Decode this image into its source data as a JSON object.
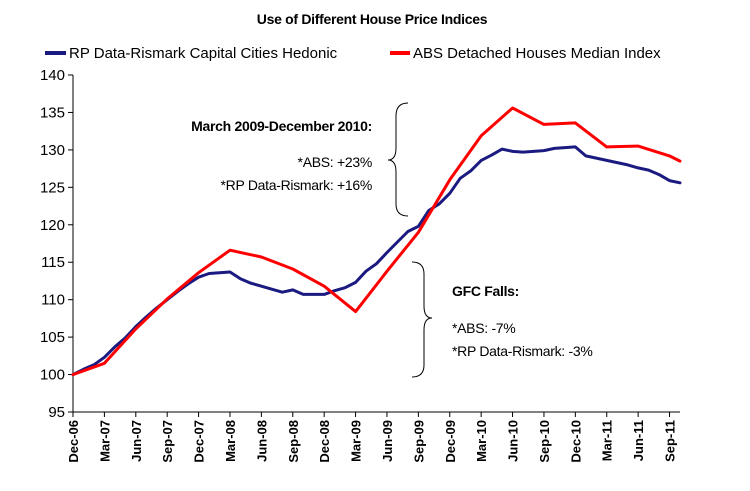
{
  "chart_data": {
    "type": "line",
    "title": "Use of Different House Price Indices",
    "xlabel": "",
    "ylabel": "",
    "ylim": [
      95,
      140
    ],
    "yticks": [
      95,
      100,
      105,
      110,
      115,
      120,
      125,
      130,
      135,
      140
    ],
    "x_tick_labels": [
      "Dec-06",
      "Mar-07",
      "Jun-07",
      "Sep-07",
      "Dec-07",
      "Mar-08",
      "Jun-08",
      "Sep-08",
      "Dec-08",
      "Mar-09",
      "Jun-09",
      "Sep-09",
      "Dec-09",
      "Mar-10",
      "Jun-10",
      "Sep-10",
      "Dec-10",
      "Mar-11",
      "Jun-11",
      "Sep-11"
    ],
    "grid": false,
    "legend": "top",
    "series": [
      {
        "name": "RP Data-Rismark Capital Cities Hedonic",
        "color": "#1a1a80",
        "x": [
          "Dec-06",
          "Jan-07",
          "Feb-07",
          "Mar-07",
          "Apr-07",
          "May-07",
          "Jun-07",
          "Jul-07",
          "Aug-07",
          "Sep-07",
          "Oct-07",
          "Nov-07",
          "Dec-07",
          "Jan-08",
          "Feb-08",
          "Mar-08",
          "Apr-08",
          "May-08",
          "Jun-08",
          "Jul-08",
          "Aug-08",
          "Sep-08",
          "Oct-08",
          "Nov-08",
          "Dec-08",
          "Jan-09",
          "Feb-09",
          "Mar-09",
          "Apr-09",
          "May-09",
          "Jun-09",
          "Jul-09",
          "Aug-09",
          "Sep-09",
          "Oct-09",
          "Nov-09",
          "Dec-09",
          "Jan-10",
          "Feb-10",
          "Mar-10",
          "Apr-10",
          "May-10",
          "Jun-10",
          "Jul-10",
          "Aug-10",
          "Sep-10",
          "Oct-10",
          "Nov-10",
          "Dec-10",
          "Jan-11",
          "Feb-11",
          "Mar-11",
          "Apr-11",
          "May-11",
          "Jun-11",
          "Jul-11",
          "Aug-11",
          "Sep-11",
          "Oct-11"
        ],
        "values": [
          100.0,
          100.7,
          101.3,
          102.3,
          103.7,
          104.9,
          106.4,
          107.7,
          108.9,
          110.0,
          111.1,
          112.1,
          113.0,
          113.5,
          113.6,
          113.7,
          112.8,
          112.2,
          111.8,
          111.4,
          111.0,
          111.3,
          110.7,
          110.7,
          110.7,
          111.2,
          111.6,
          112.3,
          113.8,
          114.8,
          116.3,
          117.7,
          119.1,
          119.8,
          121.9,
          122.8,
          124.2,
          126.2,
          127.2,
          128.6,
          129.3,
          130.1,
          129.8,
          129.7,
          129.8,
          129.9,
          130.2,
          130.3,
          130.4,
          129.2,
          128.9,
          128.6,
          128.3,
          128.0,
          127.6,
          127.3,
          126.7,
          125.9,
          125.6
        ]
      },
      {
        "name": "ABS Detached Houses Median Index",
        "color": "#ff0000",
        "x": [
          "Dec-06",
          "Mar-07",
          "Jun-07",
          "Sep-07",
          "Dec-07",
          "Mar-08",
          "Jun-08",
          "Sep-08",
          "Dec-08",
          "Mar-09",
          "Jun-09",
          "Sep-09",
          "Dec-09",
          "Mar-10",
          "Jun-10",
          "Sep-10",
          "Dec-10",
          "Mar-11",
          "Jun-11",
          "Sep-11",
          "Oct-11"
        ],
        "values": [
          100.0,
          101.5,
          106.1,
          110.1,
          113.6,
          116.6,
          115.7,
          114.1,
          111.8,
          108.4,
          113.8,
          119.0,
          126.0,
          131.9,
          135.6,
          133.4,
          133.6,
          130.4,
          130.5,
          129.2,
          128.5
        ]
      }
    ],
    "annotations": [
      {
        "bold": "March 2009-December 2010:",
        "lines": [
          "*ABS: +23%",
          "*RP Data-Rismark: +16%"
        ]
      },
      {
        "bold": "GFC Falls:",
        "lines": [
          "*ABS: -7%",
          "*RP Data-Rismark: -3%"
        ]
      }
    ]
  }
}
